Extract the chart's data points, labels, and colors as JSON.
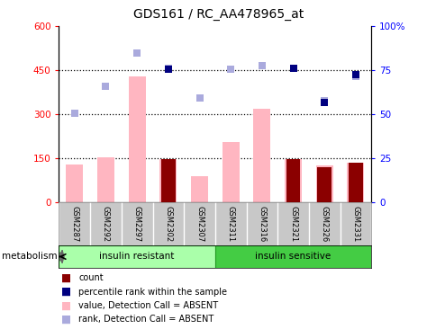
{
  "title": "GDS161 / RC_AA478965_at",
  "samples": [
    "GSM2287",
    "GSM2292",
    "GSM2297",
    "GSM2302",
    "GSM2307",
    "GSM2311",
    "GSM2316",
    "GSM2321",
    "GSM2326",
    "GSM2331"
  ],
  "value_absent": [
    130,
    155,
    430,
    148,
    90,
    205,
    320,
    148,
    125,
    135
  ],
  "rank_absent": [
    305,
    395,
    510,
    458,
    355,
    455,
    465,
    458,
    345,
    430
  ],
  "count": [
    null,
    null,
    null,
    148,
    null,
    null,
    null,
    148,
    120,
    135
  ],
  "percentile_rank_left": [
    null,
    null,
    null,
    455,
    null,
    null,
    null,
    458,
    340,
    435
  ],
  "ylim_left": [
    0,
    600
  ],
  "yticks_left": [
    0,
    150,
    300,
    450,
    600
  ],
  "ytick_labels_left": [
    "0",
    "150",
    "300",
    "450",
    "600"
  ],
  "ytick_labels_right": [
    "0",
    "25",
    "50",
    "75",
    "100%"
  ],
  "dotted_lines": [
    150,
    300,
    450
  ],
  "bar_color_value": "#FFB6C1",
  "bar_color_count": "#8B0000",
  "dot_color_rank": "#AAAADD",
  "dot_color_percentile": "#000080",
  "label_count": "count",
  "label_percentile": "percentile rank within the sample",
  "label_value": "value, Detection Call = ABSENT",
  "label_rank": "rank, Detection Call = ABSENT",
  "group_label_resistant": "insulin resistant",
  "group_label_sensitive": "insulin sensitive",
  "group_color_resistant": "#AAFFAA",
  "group_color_sensitive": "#44CC44",
  "metabolism_label": "metabolism"
}
